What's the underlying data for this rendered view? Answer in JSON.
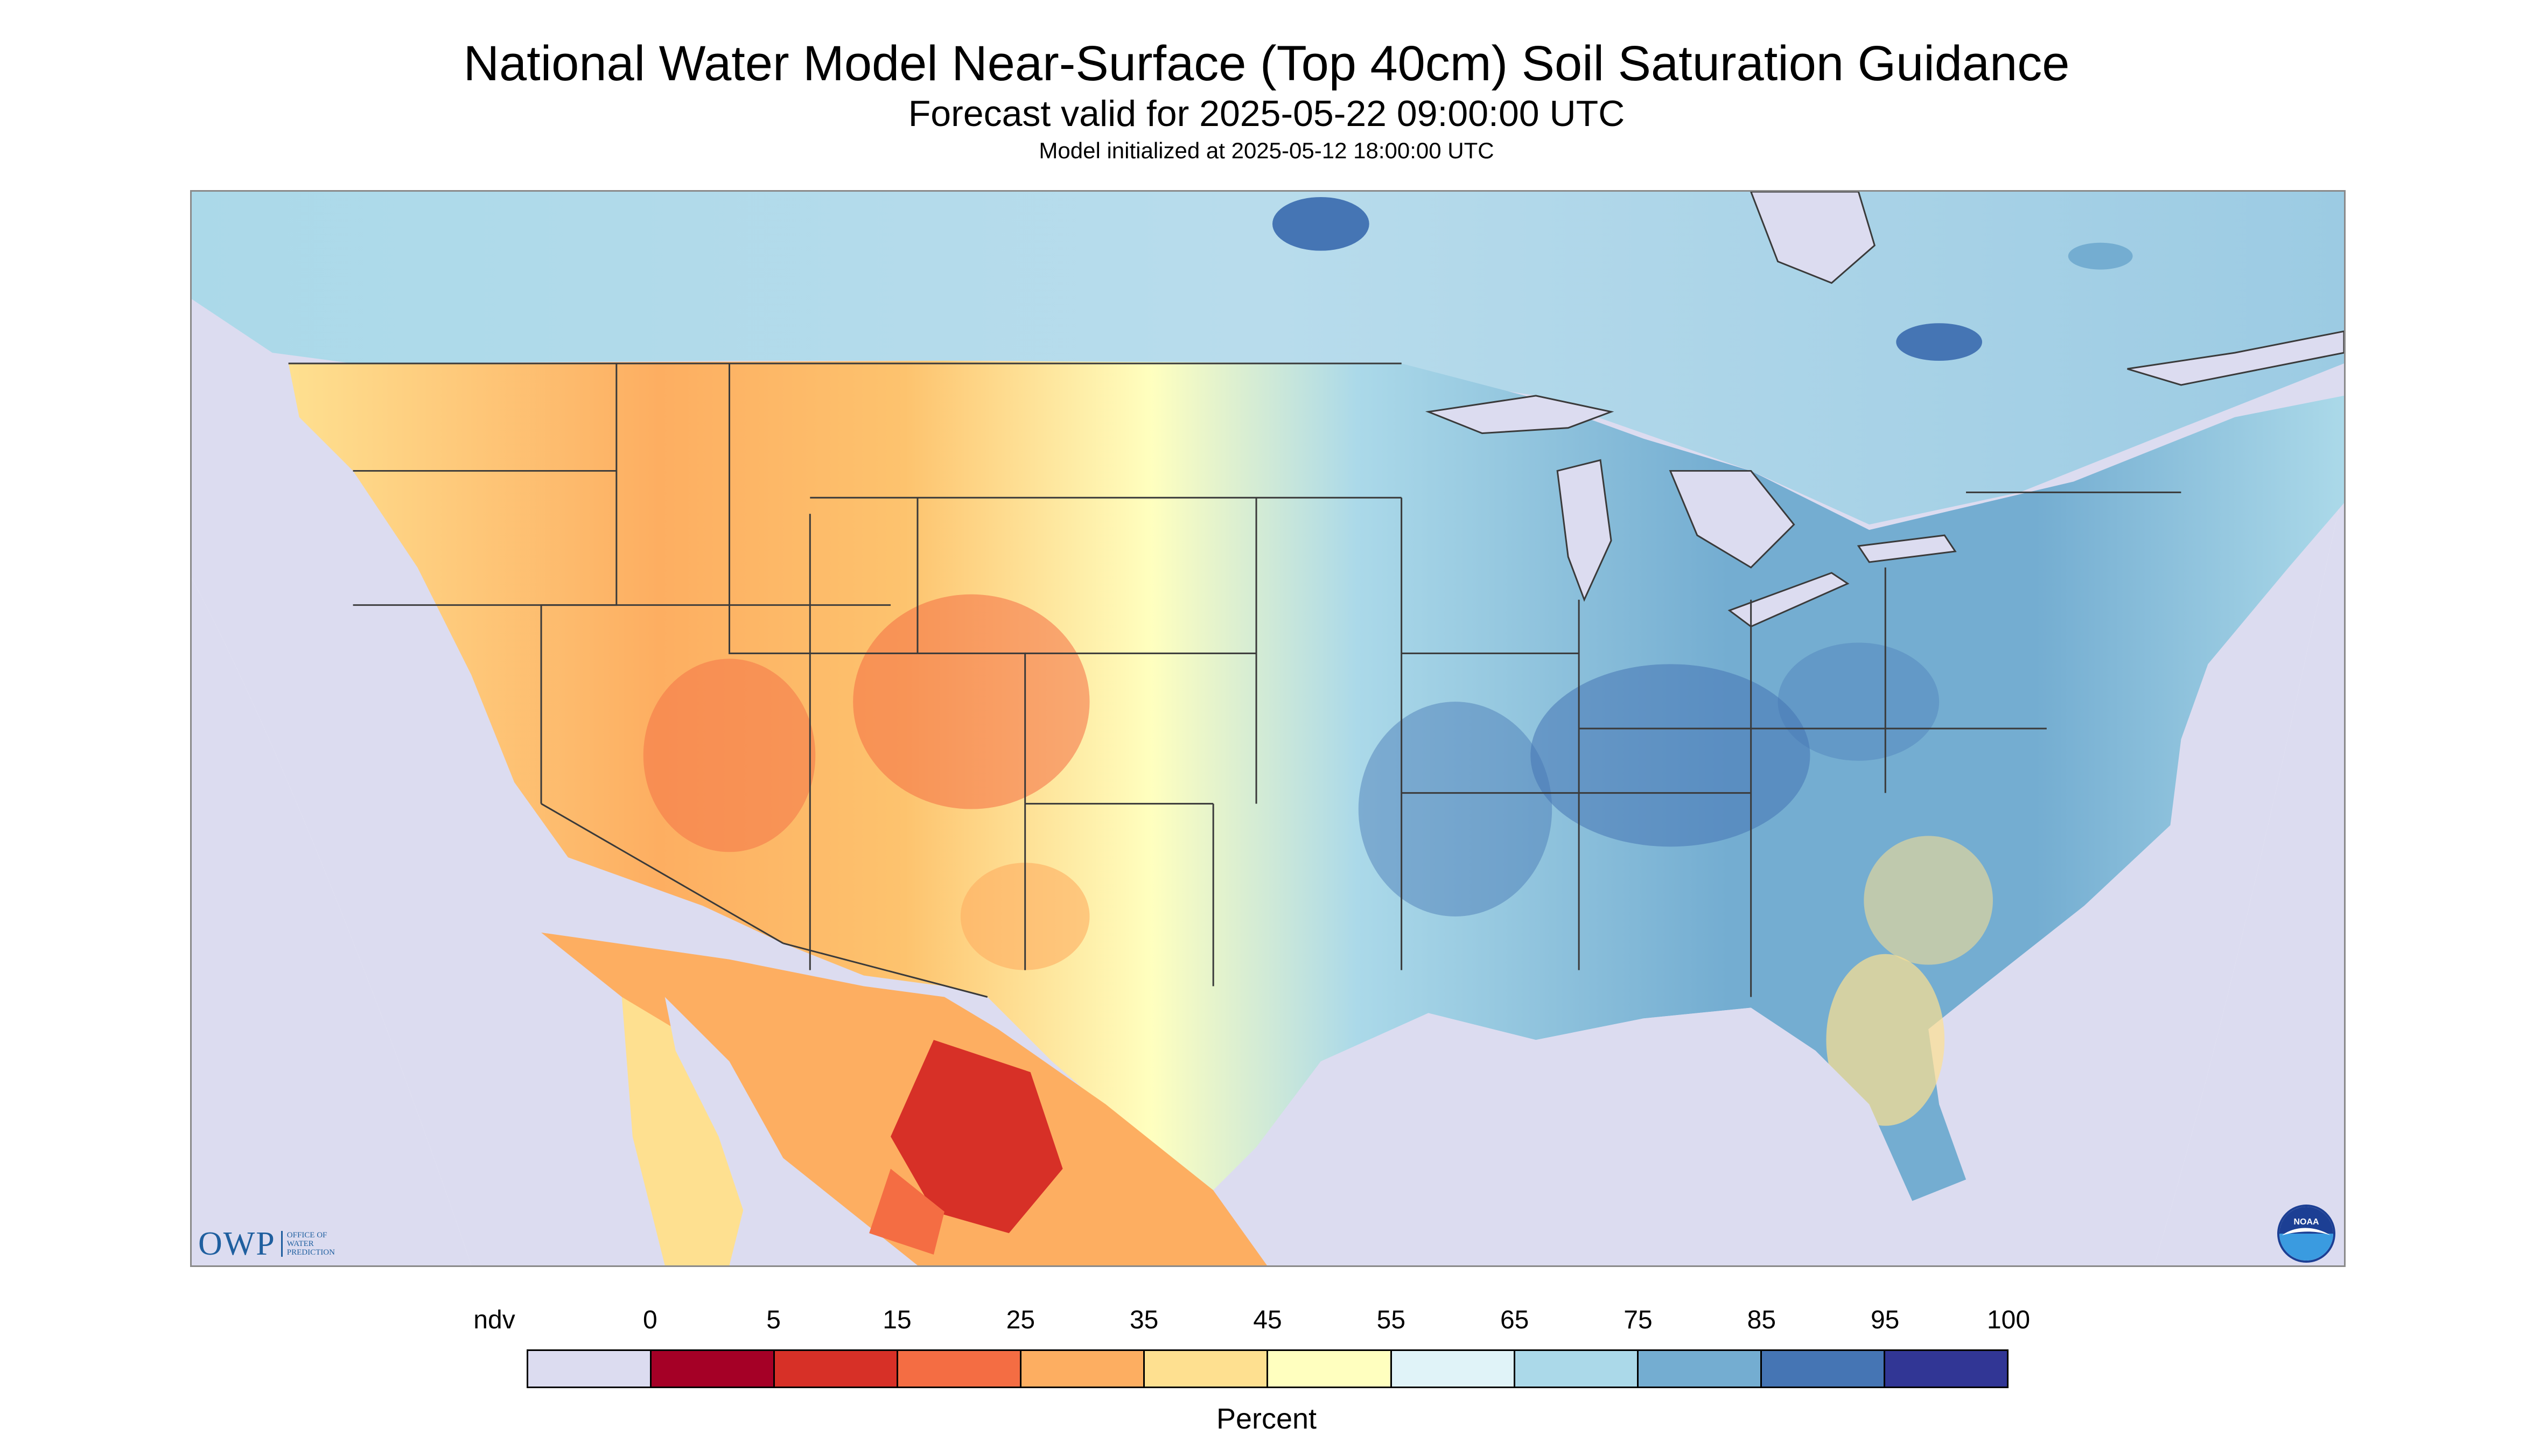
{
  "header": {
    "title": "National Water Model Near-Surface (Top 40cm) Soil Saturation Guidance",
    "subtitle": "Forecast valid for 2025-05-22 09:00:00 UTC",
    "init_line": "Model initialized at 2025-05-12 18:00:00 UTC"
  },
  "logos": {
    "owp_text": "OWP",
    "owp_sub": [
      "OFFICE OF",
      "WATER",
      "PREDICTION"
    ],
    "noaa_text": "NOAA"
  },
  "legend": {
    "tick_labels": [
      "ndv",
      "0",
      "5",
      "15",
      "25",
      "35",
      "45",
      "55",
      "65",
      "75",
      "85",
      "95",
      "100"
    ],
    "colors": [
      "#dcdcf0",
      "#a50026",
      "#d73027",
      "#f46d43",
      "#fdae61",
      "#fee090",
      "#ffffbf",
      "#e0f3f8",
      "#abd9e9",
      "#74add1",
      "#4575b4",
      "#313695"
    ],
    "units": "Percent"
  },
  "palette": {
    "no_data": "#dcdcf0",
    "lake": "#dcdcf0",
    "border": "#3a3a3a"
  }
}
